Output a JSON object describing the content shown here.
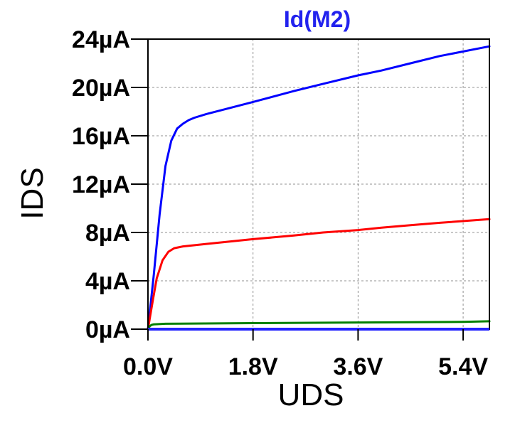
{
  "chart_data": {
    "type": "line",
    "title": "Id(M2)",
    "xlabel": "UDS",
    "ylabel": "IDS",
    "x_unit": "V",
    "y_unit": "µA",
    "xlim": [
      0,
      5.85
    ],
    "ylim": [
      0,
      24
    ],
    "xticks": [
      0,
      1.8,
      3.6,
      5.4
    ],
    "x_tick_labels": [
      "0.0V",
      "1.8V",
      "3.6V",
      "5.4V"
    ],
    "yticks": [
      0,
      4,
      8,
      12,
      16,
      20,
      24
    ],
    "y_tick_labels": [
      "0µA",
      "4µA",
      "8µA",
      "12µA",
      "16µA",
      "20µA",
      "24µA"
    ],
    "grid": true,
    "legend": "none",
    "series": [
      {
        "color": "#0000ff",
        "x": [
          0,
          0.1,
          0.2,
          0.3,
          0.4,
          0.5,
          0.6,
          0.7,
          0.8,
          1.0,
          1.4,
          1.8,
          2.5,
          3.0,
          3.6,
          4.0,
          4.5,
          5.0,
          5.85
        ],
        "values": [
          0,
          4.5,
          9.5,
          13.5,
          15.6,
          16.6,
          17.0,
          17.3,
          17.5,
          17.8,
          18.3,
          18.8,
          19.7,
          20.3,
          21.0,
          21.4,
          22.0,
          22.6,
          23.4
        ]
      },
      {
        "color": "#ff0000",
        "x": [
          0,
          0.08,
          0.15,
          0.25,
          0.35,
          0.45,
          0.6,
          0.8,
          1.0,
          1.8,
          2.5,
          3.0,
          3.6,
          4.0,
          4.5,
          5.0,
          5.85
        ],
        "values": [
          0,
          2.3,
          4.2,
          5.7,
          6.4,
          6.7,
          6.85,
          6.95,
          7.05,
          7.45,
          7.75,
          8.0,
          8.2,
          8.4,
          8.6,
          8.8,
          9.1
        ]
      },
      {
        "color": "#008000",
        "x": [
          0,
          0.03,
          0.06,
          0.1,
          0.3,
          1.8,
          3.6,
          5.4,
          5.85
        ],
        "values": [
          0,
          0.25,
          0.35,
          0.4,
          0.45,
          0.5,
          0.55,
          0.6,
          0.65
        ]
      }
    ]
  }
}
